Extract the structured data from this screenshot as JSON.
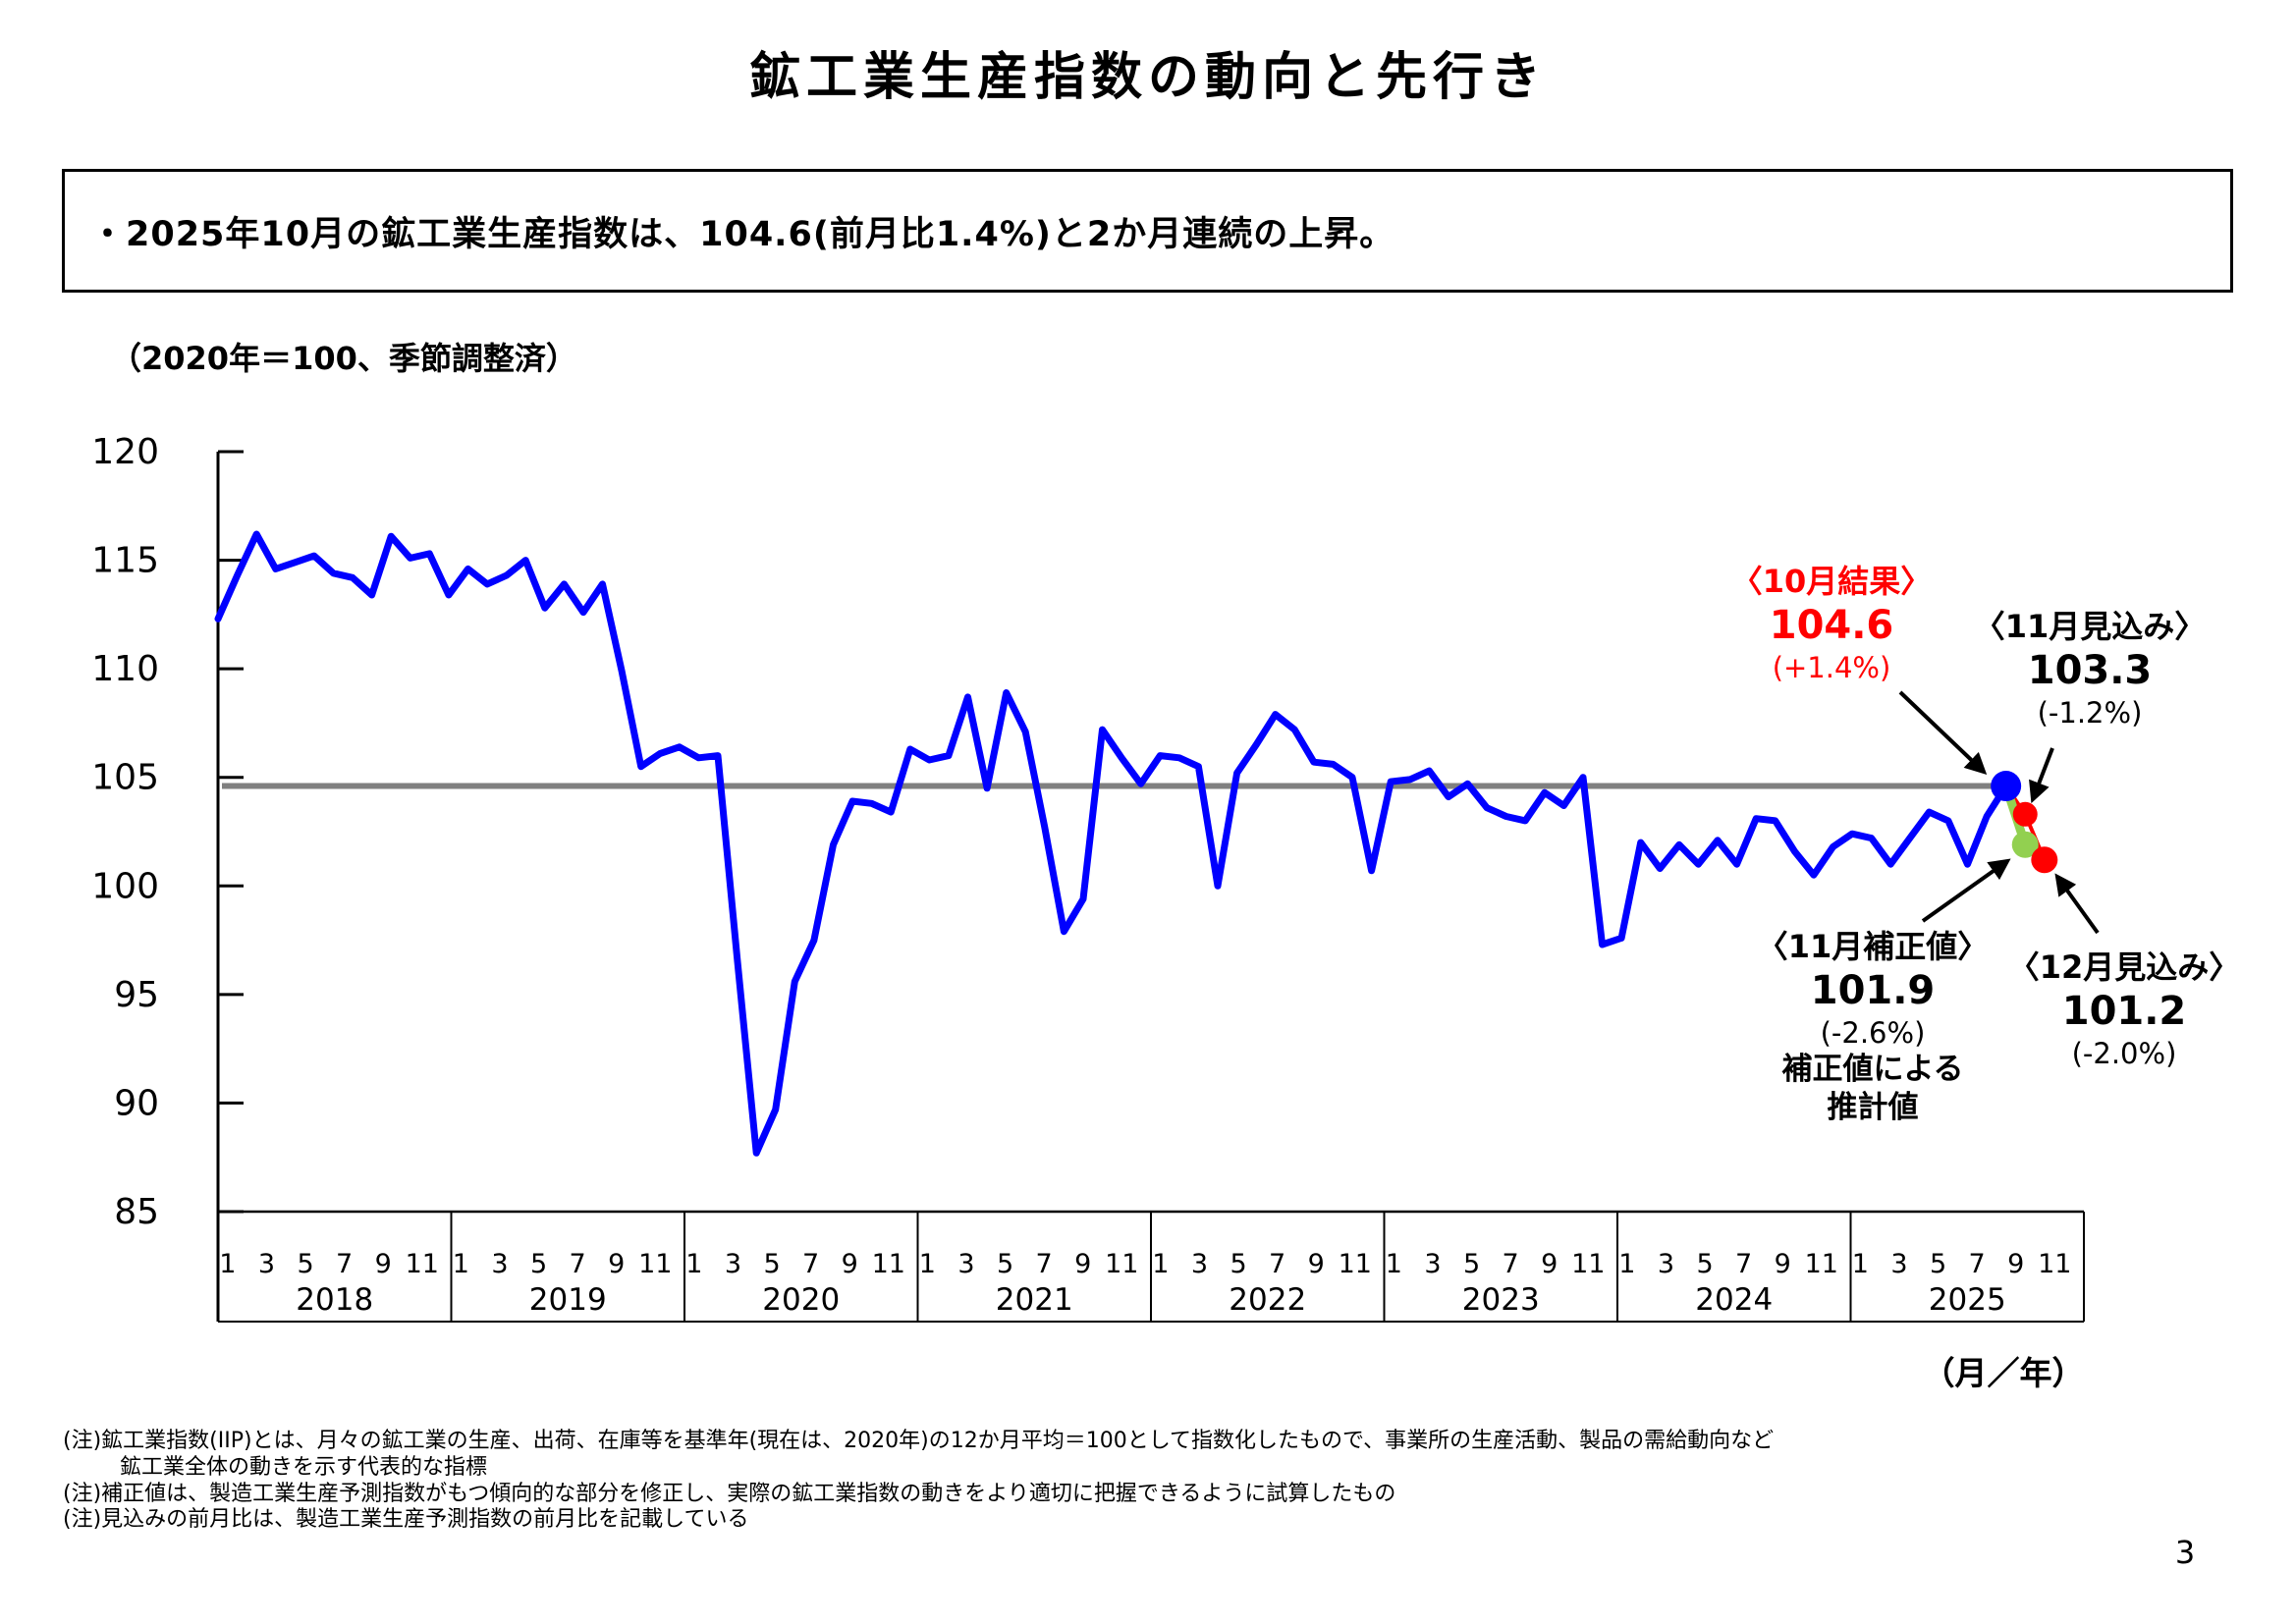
{
  "header": {
    "title": "鉱工業生産指数の動向と先行き"
  },
  "summary": {
    "text": "・2025年10月の鉱工業生産指数は、104.6(前月比1.4%)と2か月連続の上昇。"
  },
  "chart": {
    "unit_note": "（2020年＝100、季節調整済）",
    "axis_unit_label": "（月／年）"
  },
  "chart_data": {
    "type": "line",
    "title": "鉱工業生産指数（2020年＝100、季節調整済）",
    "xlabel": "月／年",
    "ylabel": "",
    "ylim": [
      85,
      120
    ],
    "yticks": [
      120,
      115,
      110,
      105,
      100,
      95,
      90,
      85
    ],
    "grid": "off",
    "legend": "none",
    "x_start": "2018-01",
    "x_end": "2025-10",
    "years": [
      "2018",
      "2019",
      "2020",
      "2021",
      "2022",
      "2023",
      "2024",
      "2025"
    ],
    "month_ticks": [
      "1",
      "3",
      "5",
      "7",
      "9",
      "11"
    ],
    "series": [
      {
        "name": "鉱工業生産指数(実績)",
        "color": "#0000ff",
        "values": [
          112.3,
          114.3,
          116.2,
          114.6,
          114.9,
          115.2,
          114.4,
          114.2,
          113.4,
          116.1,
          115.1,
          115.3,
          113.4,
          114.6,
          113.9,
          114.3,
          115.0,
          112.8,
          113.9,
          112.6,
          113.9,
          109.9,
          105.5,
          106.1,
          106.4,
          105.9,
          106.0,
          96.7,
          87.7,
          89.7,
          95.6,
          97.5,
          101.9,
          103.9,
          103.8,
          103.4,
          106.3,
          105.8,
          106.0,
          108.7,
          104.5,
          108.9,
          107.1,
          102.7,
          97.9,
          99.4,
          107.2,
          105.9,
          104.7,
          106.0,
          105.9,
          105.5,
          100.0,
          105.2,
          106.5,
          107.9,
          107.2,
          105.7,
          105.6,
          105.0,
          100.7,
          104.8,
          104.9,
          105.3,
          104.1,
          104.7,
          103.6,
          103.2,
          103.0,
          104.3,
          103.7,
          105.0,
          97.3,
          97.6,
          102.0,
          100.8,
          101.9,
          101.0,
          102.1,
          101.0,
          103.1,
          103.0,
          101.6,
          100.5,
          101.8,
          102.4,
          102.2,
          101.0,
          102.2,
          103.4,
          103.0,
          101.0,
          103.2,
          104.6
        ]
      }
    ],
    "reference_line": {
      "value": 104.6,
      "color": "#808080"
    },
    "forecast_points": [
      {
        "label": "10月結果",
        "value": 104.6,
        "pct": "+1.4%",
        "color": "#0000ff",
        "month_offset": 0
      },
      {
        "label": "11月見込み",
        "value": 103.3,
        "pct": "-1.2%",
        "color": "#ff0000",
        "month_offset": 1
      },
      {
        "label": "11月補正値",
        "value": 101.9,
        "pct": "-2.6%",
        "color": "#92d050",
        "month_offset": 1
      },
      {
        "label": "12月見込み",
        "value": 101.2,
        "pct": "-2.0%",
        "color": "#ff0000",
        "month_offset": 2
      }
    ]
  },
  "annotations": {
    "oct": {
      "label": "〈10月結果〉",
      "value": "104.6",
      "pct": "(+1.4%)"
    },
    "nov_forecast": {
      "label": "〈11月見込み〉",
      "value": "103.3",
      "pct": "(-1.2%)"
    },
    "nov_corrected": {
      "label": "〈11月補正値〉",
      "value": "101.9",
      "pct": "(-2.6%)",
      "note1": "補正値による",
      "note2": "推計値"
    },
    "dec_forecast": {
      "label": "〈12月見込み〉",
      "value": "101.2",
      "pct": "(-2.0%)"
    }
  },
  "notes": [
    "(注)鉱工業指数(IIP)とは、月々の鉱工業の生産、出荷、在庫等を基準年(現在は、2020年)の12か月平均＝100として指数化したもので、事業所の生産活動、製品の需給動向など",
    "鉱工業全体の動きを示す代表的な指標",
    "(注)補正値は、製造工業生産予測指数がもつ傾向的な部分を修正し、実際の鉱工業指数の動きをより適切に把握できるように試算したもの",
    "(注)見込みの前月比は、製造工業生産予測指数の前月比を記載している"
  ],
  "page_number": "3",
  "colors": {
    "line": "#0000ff",
    "reference": "#808080",
    "accent_red": "#ff0000",
    "accent_green": "#92d050",
    "axis": "#000000"
  }
}
